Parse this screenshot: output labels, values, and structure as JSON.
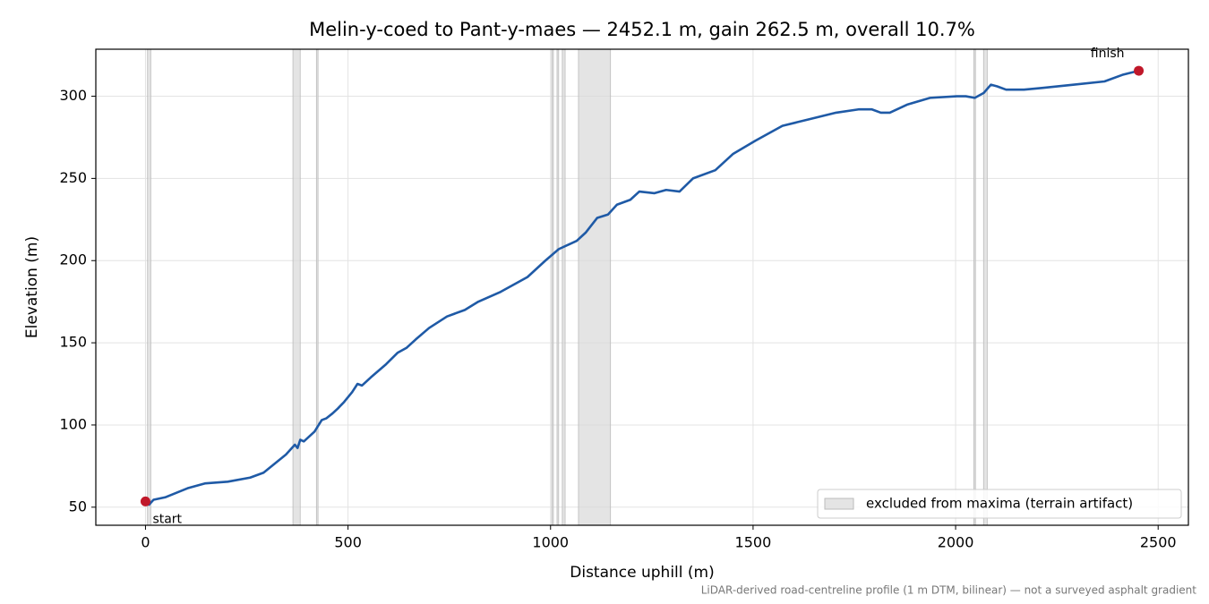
{
  "chart_data": {
    "type": "line",
    "title": "Melin-y-coed to Pant-y-maes — 2452.1 m, gain 262.5 m, overall 10.7%",
    "xlabel": "Distance uphill (m)",
    "ylabel": "Elevation (m)",
    "note": "LiDAR-derived road-centreline profile (1 m DTM, bilinear) — not a surveyed asphalt gradient",
    "color": "#1f5aa6",
    "x": [
      0,
      8.8,
      19.9,
      48.6,
      103.8,
      147.9,
      203.2,
      258.4,
      291.5,
      346.7,
      368.8,
      375.4,
      382.1,
      390.9,
      417.4,
      435.1,
      446.1,
      461.6,
      474.8,
      490.3,
      510.2,
      523.4,
      534.5,
      556.5,
      594.1,
      622.8,
      644.9,
      667,
      700.1,
      744.3,
      788.4,
      821.6,
      876.8,
      943,
      987.2,
      1020.3,
      1064.5,
      1086.6,
      1115.3,
      1141.8,
      1163.9,
      1197,
      1219.1,
      1256.6,
      1285.3,
      1318.5,
      1351.6,
      1406.8,
      1451,
      1506.2,
      1572.4,
      1638.7,
      1704.9,
      1760.2,
      1793.3,
      1815.4,
      1837.5,
      1881.6,
      1936.8,
      2003.1,
      2025.2,
      2047.3,
      2069.4,
      2087,
      2102.5,
      2124.6,
      2168.7,
      2212.9,
      2290.2,
      2367.5,
      2411.7,
      2452.1
    ],
    "values": [
      53.5,
      51.5,
      54.5,
      56,
      61.5,
      64.5,
      65.5,
      68,
      71,
      82,
      88,
      86,
      91,
      90,
      96,
      103,
      104,
      107,
      110,
      114,
      120,
      125,
      124,
      129,
      137,
      144,
      147,
      152,
      159,
      166,
      170,
      175,
      181,
      190,
      200,
      207,
      212,
      217,
      226,
      228,
      234,
      237,
      242,
      241,
      243,
      242,
      250,
      255,
      265,
      273,
      282,
      286,
      290,
      292,
      292,
      290,
      290,
      295,
      299,
      300,
      300,
      299,
      302,
      307,
      306,
      304,
      304,
      305,
      307,
      309,
      313,
      315.5
    ],
    "markers": [
      {
        "label": "start",
        "x": 0,
        "y": 53.5,
        "color": "#c0182a"
      },
      {
        "label": "finish",
        "x": 2452.1,
        "y": 315.5,
        "color": "#c0182a"
      }
    ],
    "excluded": {
      "label": "excluded from maxima (terrain artifact)",
      "color": "#d9d9d9",
      "ranges": [
        [
          5,
          13
        ],
        [
          364,
          382
        ],
        [
          422,
          426
        ],
        [
          1003,
          1007
        ],
        [
          1016,
          1020
        ],
        [
          1029,
          1036
        ],
        [
          1069,
          1148
        ],
        [
          2045,
          2049
        ],
        [
          2069,
          2078
        ]
      ]
    },
    "legend": "lower right",
    "grid": true,
    "xlim": [
      -122.6,
      2574.7
    ],
    "ylim": [
      39,
      328.6
    ],
    "xticks": [
      0,
      500,
      1000,
      1500,
      2000,
      2500
    ],
    "yticks": [
      50,
      100,
      150,
      200,
      250,
      300
    ]
  }
}
